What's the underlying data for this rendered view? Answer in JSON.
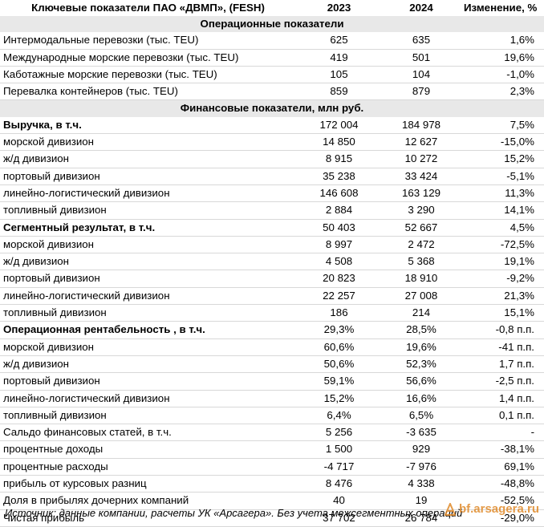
{
  "header": {
    "title": "Ключевые показатели ПАО «ДВМП», (FESH)",
    "year1": "2023",
    "year2": "2024",
    "change": "Изменение, %"
  },
  "sections": {
    "operational": "Операционные показатели",
    "financial": "Финансовые показатели, млн руб."
  },
  "operational_rows": [
    {
      "label": "Интермодальные перевозки (тыс. TEU)",
      "v2023": "625",
      "v2024": "635",
      "change": "1,6%"
    },
    {
      "label": "Международные морские перевозки (тыс. TEU)",
      "v2023": "419",
      "v2024": "501",
      "change": "19,6%"
    },
    {
      "label": "Каботажные морские перевозки (тыс. TEU)",
      "v2023": "105",
      "v2024": "104",
      "change": "-1,0%"
    },
    {
      "label": "Перевалка контейнеров (тыс. TEU)",
      "v2023": "859",
      "v2024": "879",
      "change": "2,3%"
    }
  ],
  "financial_rows": [
    {
      "label": "Выручка, в т.ч.",
      "v2023": "172 004",
      "v2024": "184 978",
      "change": "7,5%"
    },
    {
      "label": "морской дивизион",
      "v2023": "14 850",
      "v2024": "12 627",
      "change": "-15,0%"
    },
    {
      "label": "ж/д дивизион",
      "v2023": "8 915",
      "v2024": "10 272",
      "change": "15,2%"
    },
    {
      "label": "портовый дивизион",
      "v2023": "35 238",
      "v2024": "33 424",
      "change": "-5,1%"
    },
    {
      "label": "линейно-логистический дивизион",
      "v2023": "146 608",
      "v2024": "163 129",
      "change": "11,3%"
    },
    {
      "label": "топливный дивизион",
      "v2023": "2 884",
      "v2024": "3 290",
      "change": "14,1%"
    },
    {
      "label": "Сегментный результат, в т.ч.",
      "v2023": "50 403",
      "v2024": "52 667",
      "change": "4,5%"
    },
    {
      "label": "морской дивизион",
      "v2023": "8 997",
      "v2024": "2 472",
      "change": "-72,5%"
    },
    {
      "label": "ж/д дивизион",
      "v2023": "4 508",
      "v2024": "5 368",
      "change": "19,1%"
    },
    {
      "label": "портовый дивизион",
      "v2023": "20 823",
      "v2024": "18 910",
      "change": "-9,2%"
    },
    {
      "label": "линейно-логистический дивизион",
      "v2023": "22 257",
      "v2024": "27 008",
      "change": "21,3%"
    },
    {
      "label": "топливный дивизион",
      "v2023": "186",
      "v2024": "214",
      "change": "15,1%"
    },
    {
      "label": "Операционная рентабельность , в т.ч.",
      "v2023": "29,3%",
      "v2024": "28,5%",
      "change": "-0,8 п.п."
    },
    {
      "label": "морской дивизион",
      "v2023": "60,6%",
      "v2024": "19,6%",
      "change": "-41 п.п."
    },
    {
      "label": "ж/д дивизион",
      "v2023": "50,6%",
      "v2024": "52,3%",
      "change": "1,7 п.п."
    },
    {
      "label": "портовый дивизион",
      "v2023": "59,1%",
      "v2024": "56,6%",
      "change": "-2,5 п.п."
    },
    {
      "label": "линейно-логистический дивизион",
      "v2023": "15,2%",
      "v2024": "16,6%",
      "change": "1,4 п.п."
    },
    {
      "label": "топливный дивизион",
      "v2023": "6,4%",
      "v2024": "6,5%",
      "change": "0,1 п.п."
    },
    {
      "label": "Сальдо финансовых статей, в т.ч.",
      "v2023": "5 256",
      "v2024": "-3 635",
      "change": "-"
    },
    {
      "label": "процентные доходы",
      "v2023": "1 500",
      "v2024": "929",
      "change": "-38,1%"
    },
    {
      "label": "процентные расходы",
      "v2023": "-4 717",
      "v2024": "-7 976",
      "change": "69,1%"
    },
    {
      "label": "прибыль от курсовых разниц",
      "v2023": "8 476",
      "v2024": "4 338",
      "change": "-48,8%"
    },
    {
      "label": "Доля в прибылях дочерних компаний",
      "v2023": "40",
      "v2024": "19",
      "change": "-52,5%"
    },
    {
      "label": "Чистая прибыль",
      "v2023": "37 702",
      "v2024": "26 784",
      "change": "-29,0%"
    }
  ],
  "footer": "Источник: данные компании, расчеты УК «Арсагера». Без учета межсегментных операций",
  "watermark": "bf.arsagera.ru",
  "accent_color": "#e08a2a"
}
